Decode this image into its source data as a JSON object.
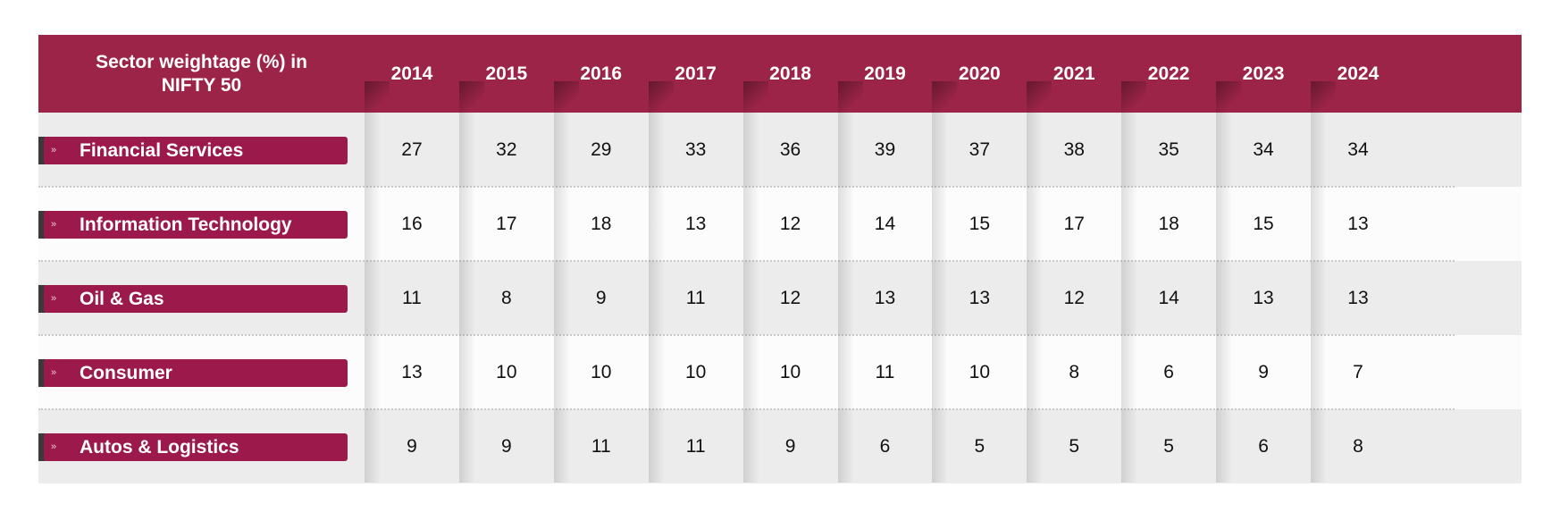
{
  "chart_data": {
    "type": "table",
    "header_title": "Sector weightage (%) in NIFTY 50",
    "columns": [
      "2014",
      "2015",
      "2016",
      "2017",
      "2018",
      "2019",
      "2020",
      "2021",
      "2022",
      "2023",
      "2024"
    ],
    "rows": [
      {
        "name": "Financial Services",
        "values": [
          27,
          32,
          29,
          33,
          36,
          39,
          37,
          38,
          35,
          34,
          34
        ]
      },
      {
        "name": "Information Technology",
        "values": [
          16,
          17,
          18,
          13,
          12,
          14,
          15,
          17,
          18,
          15,
          13
        ]
      },
      {
        "name": "Oil & Gas",
        "values": [
          11,
          8,
          9,
          11,
          12,
          13,
          13,
          12,
          14,
          13,
          13
        ]
      },
      {
        "name": "Consumer",
        "values": [
          13,
          10,
          10,
          10,
          10,
          11,
          10,
          8,
          6,
          9,
          7
        ]
      },
      {
        "name": "Autos & Logistics",
        "values": [
          9,
          9,
          11,
          11,
          9,
          6,
          5,
          5,
          5,
          6,
          8
        ]
      }
    ]
  },
  "colors": {
    "header": "#9b2448",
    "label_bar": "#9b1a4b",
    "row_odd": "#ececec",
    "row_even": "#fcfcfc"
  },
  "icons": {
    "row_marker": "chevron-right-icon"
  },
  "marker_glyph": "»"
}
